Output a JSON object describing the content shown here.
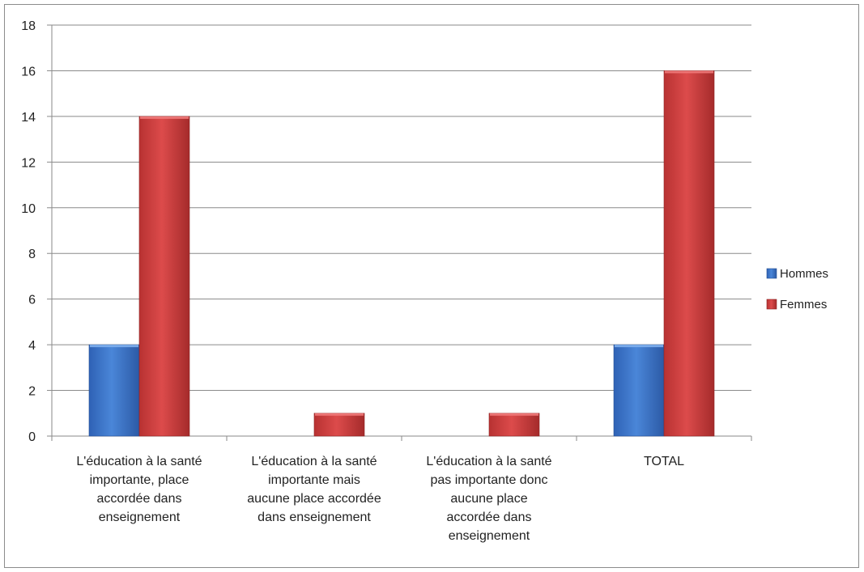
{
  "chart_data": {
    "type": "bar",
    "title": "",
    "xlabel": "",
    "ylabel": "",
    "ylim": [
      0,
      18
    ],
    "yticks": [
      0,
      2,
      4,
      6,
      8,
      10,
      12,
      14,
      16,
      18
    ],
    "grid": true,
    "legend_position": "right",
    "categories": [
      [
        "L'éducation à la santé",
        "importante, place",
        "accordée dans",
        "enseignement"
      ],
      [
        "L'éducation à la santé",
        "importante mais",
        "aucune place accordée",
        "dans enseignement"
      ],
      [
        "L'éducation à la santé",
        "pas importante donc",
        "aucune place",
        "accordée dans",
        "enseignement"
      ],
      [
        "TOTAL"
      ]
    ],
    "series": [
      {
        "name": "Hommes",
        "color": "#3a6fc4",
        "values": [
          4,
          0,
          0,
          4
        ]
      },
      {
        "name": "Femmes",
        "color": "#c83a3a",
        "values": [
          14,
          1,
          1,
          16
        ]
      }
    ]
  }
}
